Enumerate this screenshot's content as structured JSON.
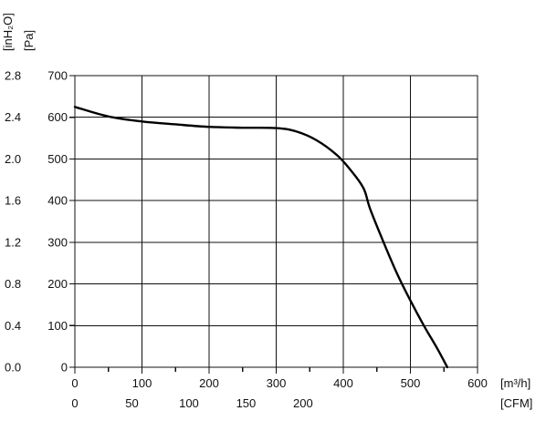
{
  "chart_data": {
    "type": "line",
    "title": "",
    "x": [
      0,
      50,
      100,
      150,
      200,
      250,
      300,
      330,
      360,
      390,
      410,
      430,
      440,
      460,
      480,
      500,
      520,
      540,
      555
    ],
    "series": [
      {
        "values": [
          625,
          602,
          590,
          583,
          577,
          575,
          574,
          566,
          545,
          510,
          475,
          430,
          380,
          300,
          225,
          160,
          100,
          45,
          0
        ]
      }
    ],
    "xlim": [
      0,
      600
    ],
    "ylim": [
      0,
      700
    ],
    "grid": true,
    "axes": {
      "x_primary": {
        "unit_label": "[m³/h]",
        "ticks": [
          0,
          100,
          200,
          300,
          400,
          500,
          600
        ],
        "tick_labels": [
          "0",
          "100",
          "200",
          "300",
          "400",
          "500",
          "600"
        ]
      },
      "x_secondary": {
        "unit_label": "[CFM]",
        "ticks": [
          0,
          50,
          100,
          150,
          200
        ],
        "tick_labels": [
          "0",
          "50",
          "100",
          "150",
          "200"
        ]
      },
      "y_primary": {
        "unit_label": "[Pa]",
        "ticks": [
          0,
          100,
          200,
          300,
          400,
          500,
          600,
          700
        ],
        "tick_labels": [
          "0",
          "100",
          "200",
          "300",
          "400",
          "500",
          "600",
          "700"
        ]
      },
      "y_secondary": {
        "unit_label": "[inH₂O]",
        "ticks": [
          0.0,
          0.4,
          0.8,
          1.2,
          1.6,
          2.0,
          2.4,
          2.8
        ],
        "tick_labels": [
          "0.0",
          "0.4",
          "0.8",
          "1.2",
          "1.6",
          "2.0",
          "2.4",
          "2.8"
        ]
      }
    }
  }
}
